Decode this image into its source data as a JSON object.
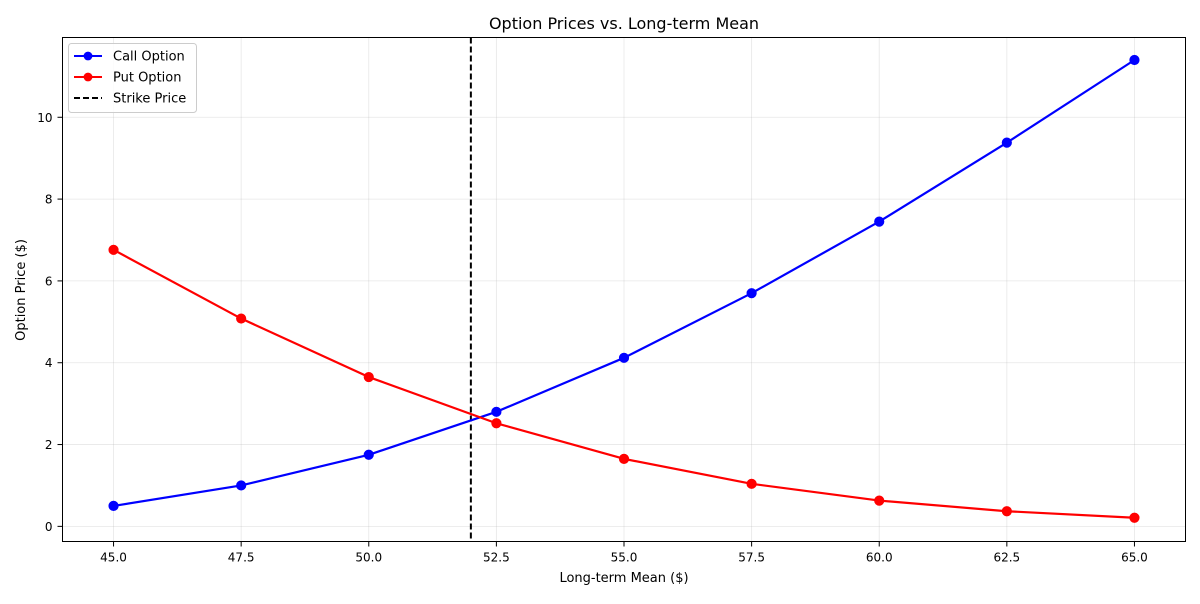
{
  "chart_data": {
    "type": "line",
    "title": "Option Prices vs. Long-term Mean",
    "xlabel": "Long-term Mean ($)",
    "ylabel": "Option Price ($)",
    "xlim": [
      44.0,
      66.0
    ],
    "ylim": [
      -0.37,
      11.95
    ],
    "x_ticks": [
      45.0,
      47.5,
      50.0,
      52.5,
      55.0,
      57.5,
      60.0,
      62.5,
      65.0
    ],
    "x_tick_labels": [
      "45.0",
      "47.5",
      "50.0",
      "52.5",
      "55.0",
      "57.5",
      "60.0",
      "62.5",
      "65.0"
    ],
    "y_ticks": [
      0,
      2,
      4,
      6,
      8,
      10
    ],
    "y_tick_labels": [
      "0",
      "2",
      "4",
      "6",
      "8",
      "10"
    ],
    "grid": true,
    "legend_position": "top-left",
    "x": [
      45.0,
      47.5,
      50.0,
      52.5,
      55.0,
      57.5,
      60.0,
      62.5,
      65.0
    ],
    "series": [
      {
        "name": "Call Option",
        "color": "#0000ff",
        "marker": "circle",
        "values": [
          0.5,
          1.0,
          1.75,
          2.8,
          4.12,
          5.7,
          7.45,
          9.38,
          11.4
        ]
      },
      {
        "name": "Put Option",
        "color": "#ff0000",
        "marker": "circle",
        "values": [
          6.76,
          5.08,
          3.65,
          2.52,
          1.65,
          1.04,
          0.63,
          0.37,
          0.21
        ]
      }
    ],
    "reference_lines": [
      {
        "name": "Strike Price",
        "orientation": "vertical",
        "x": 52.0,
        "color": "#000000",
        "style": "dashed"
      }
    ]
  }
}
